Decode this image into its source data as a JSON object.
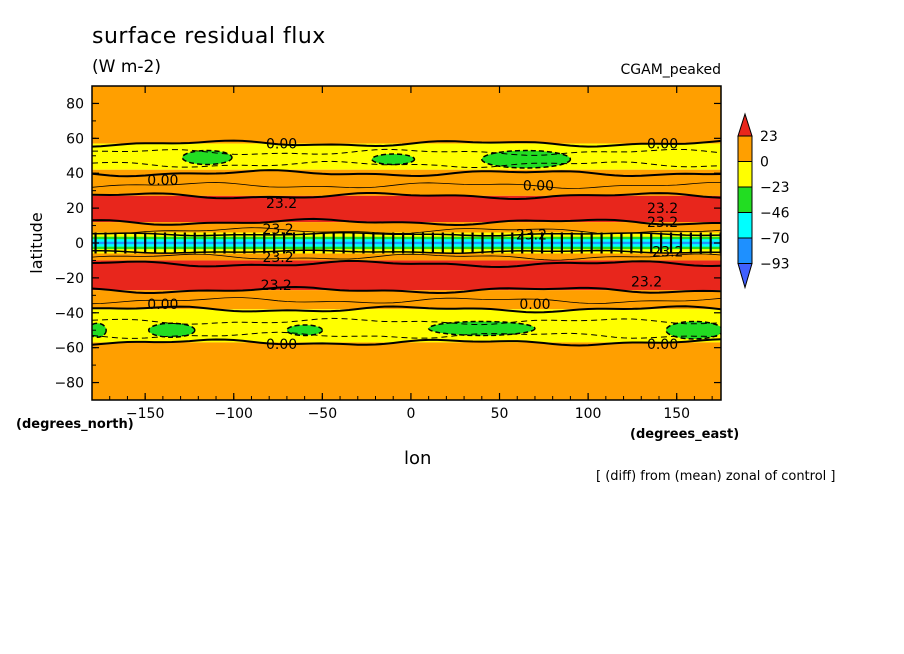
{
  "chart_data": {
    "type": "heatmap",
    "title": "surface residual flux",
    "units": "(W m-2)",
    "run_label": "CGAM_peaked",
    "note": "[ (diff) from (mean) zonal of control ]",
    "xlabel": "lon",
    "ylabel": "latitude",
    "x_units": "(degrees_east)",
    "y_units": "(degrees_north)",
    "xlim": [
      -180,
      175
    ],
    "ylim": [
      -90,
      90
    ],
    "x_ticks": [
      -150,
      -100,
      -50,
      0,
      50,
      100,
      150
    ],
    "y_ticks": [
      80,
      60,
      40,
      20,
      0,
      -20,
      -40,
      -60,
      -80
    ],
    "x_tick_labels": [
      "−150",
      "−100",
      "−50",
      "0",
      "50",
      "100",
      "150"
    ],
    "y_tick_labels": [
      "80",
      "60",
      "40",
      "20",
      "0",
      "−20",
      "−40",
      "−60",
      "−80"
    ],
    "colorbar": {
      "labels": [
        "23",
        "0",
        "−23",
        "−46",
        "−70",
        "−93"
      ],
      "levels": [
        23.2,
        0,
        -23.2,
        -46.4,
        -69.6,
        -92.8
      ],
      "colors": [
        "#e8261c",
        "#ff9f00",
        "#ffff00",
        "#22dd22",
        "#00ffff",
        "#1e90ff",
        "#4060ff"
      ]
    },
    "contour_labels": [
      "0.00",
      "23.2"
    ],
    "bands": [
      {
        "lat": [
          57,
          90
        ],
        "fill": "#ff9f00"
      },
      {
        "lat": [
          42,
          57
        ],
        "fill": "#ffff00"
      },
      {
        "lat": [
          27,
          42
        ],
        "fill": "#ff9f00"
      },
      {
        "lat": [
          12,
          27
        ],
        "fill": "#e8261c"
      },
      {
        "lat": [
          6,
          12
        ],
        "fill": "#ff9f00"
      },
      {
        "lat": [
          3,
          6
        ],
        "fill": "#ffff00"
      },
      {
        "lat": [
          -3,
          3
        ],
        "fill": "#00ffff"
      },
      {
        "lat": [
          -6,
          -3
        ],
        "fill": "#ffff00"
      },
      {
        "lat": [
          -10,
          -6
        ],
        "fill": "#ff9f00"
      },
      {
        "lat": [
          -27,
          -10
        ],
        "fill": "#e8261c"
      },
      {
        "lat": [
          -38,
          -27
        ],
        "fill": "#ff9f00"
      },
      {
        "lat": [
          -57,
          -38
        ],
        "fill": "#ffff00"
      },
      {
        "lat": [
          -90,
          -57
        ],
        "fill": "#ff9f00"
      }
    ],
    "green_patches": [
      {
        "lon": -115,
        "lat": 49,
        "dlon": 14,
        "dlat": 4
      },
      {
        "lon": -10,
        "lat": 48,
        "dlon": 12,
        "dlat": 3
      },
      {
        "lon": 65,
        "lat": 48,
        "dlon": 25,
        "dlat": 5
      },
      {
        "lon": -135,
        "lat": -50,
        "dlon": 13,
        "dlat": 4
      },
      {
        "lon": -60,
        "lat": -50,
        "dlon": 10,
        "dlat": 3
      },
      {
        "lon": 40,
        "lat": -49,
        "dlon": 30,
        "dlat": 4
      },
      {
        "lon": 160,
        "lat": -50,
        "dlon": 16,
        "dlat": 5
      },
      {
        "lon": -177,
        "lat": -50,
        "dlon": 5,
        "dlat": 4
      }
    ],
    "contours": [
      {
        "lat": 57,
        "style": "thick"
      },
      {
        "lat": 52,
        "style": "dashed"
      },
      {
        "lat": 45,
        "style": "dashed"
      },
      {
        "lat": 40,
        "style": "thick"
      },
      {
        "lat": 33,
        "style": "thin"
      },
      {
        "lat": 27,
        "style": "thick"
      },
      {
        "lat": 12,
        "style": "thick"
      },
      {
        "lat": 7,
        "style": "thin"
      },
      {
        "lat": -8,
        "style": "thin"
      },
      {
        "lat": -12,
        "style": "thick"
      },
      {
        "lat": -27,
        "style": "thick"
      },
      {
        "lat": -33,
        "style": "thin"
      },
      {
        "lat": -38,
        "style": "thick"
      },
      {
        "lat": -45,
        "style": "dashed"
      },
      {
        "lat": -53,
        "style": "dashed"
      },
      {
        "lat": -57,
        "style": "thick"
      }
    ],
    "labels_on_plot": [
      {
        "text": "0.00",
        "lon": -73,
        "lat": 57
      },
      {
        "text": "0.00",
        "lon": 142,
        "lat": 57
      },
      {
        "text": "0.00",
        "lon": -140,
        "lat": 36
      },
      {
        "text": "0.00",
        "lon": 72,
        "lat": 33
      },
      {
        "text": "23.2",
        "lon": -73,
        "lat": 23
      },
      {
        "text": "23.2",
        "lon": 142,
        "lat": 20
      },
      {
        "text": "23.2",
        "lon": -75,
        "lat": 8
      },
      {
        "text": "23.2",
        "lon": 68,
        "lat": 5
      },
      {
        "text": "23.2",
        "lon": 142,
        "lat": 12
      },
      {
        "text": "23.2",
        "lon": -75,
        "lat": -8
      },
      {
        "text": "23.2",
        "lon": 145,
        "lat": -5
      },
      {
        "text": "23.2",
        "lon": -76,
        "lat": -24
      },
      {
        "text": "23.2",
        "lon": 133,
        "lat": -22
      },
      {
        "text": "0.00",
        "lon": -140,
        "lat": -35
      },
      {
        "text": "0.00",
        "lon": 70,
        "lat": -35
      },
      {
        "text": "0.00",
        "lon": -73,
        "lat": -58
      },
      {
        "text": "0.00",
        "lon": 142,
        "lat": -58
      }
    ]
  }
}
